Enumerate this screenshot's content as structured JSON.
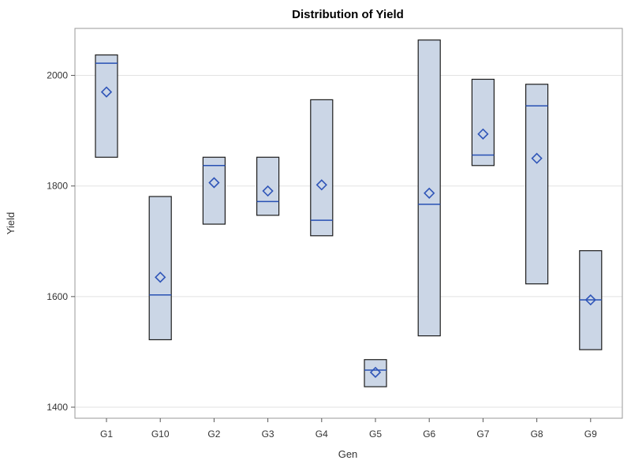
{
  "chart_data": {
    "type": "box",
    "title": "Distribution of Yield",
    "xlabel": "Gen",
    "ylabel": "Yield",
    "ylim": [
      1380,
      2085
    ],
    "yticks": [
      1400,
      1600,
      1800,
      2000
    ],
    "grid": true,
    "categories": [
      "G1",
      "G10",
      "G2",
      "G3",
      "G4",
      "G5",
      "G6",
      "G7",
      "G8",
      "G9"
    ],
    "boxes": [
      {
        "category": "G1",
        "min": 1852,
        "q1": 1852,
        "median": 2022,
        "q3": 2037,
        "max": 2037,
        "mean": 1970
      },
      {
        "category": "G10",
        "min": 1522,
        "q1": 1522,
        "median": 1603,
        "q3": 1781,
        "max": 1781,
        "mean": 1635
      },
      {
        "category": "G2",
        "min": 1731,
        "q1": 1731,
        "median": 1837,
        "q3": 1852,
        "max": 1852,
        "mean": 1806
      },
      {
        "category": "G3",
        "min": 1747,
        "q1": 1747,
        "median": 1772,
        "q3": 1852,
        "max": 1852,
        "mean": 1791
      },
      {
        "category": "G4",
        "min": 1710,
        "q1": 1710,
        "median": 1738,
        "q3": 1956,
        "max": 1956,
        "mean": 1802
      },
      {
        "category": "G5",
        "min": 1437,
        "q1": 1437,
        "median": 1467,
        "q3": 1486,
        "max": 1486,
        "mean": 1463
      },
      {
        "category": "G6",
        "min": 1529,
        "q1": 1529,
        "median": 1767,
        "q3": 2064,
        "max": 2064,
        "mean": 1787
      },
      {
        "category": "G7",
        "min": 1837,
        "q1": 1837,
        "median": 1856,
        "q3": 1993,
        "max": 1993,
        "mean": 1894
      },
      {
        "category": "G8",
        "min": 1623,
        "q1": 1623,
        "median": 1945,
        "q3": 1984,
        "max": 1984,
        "mean": 1850
      },
      {
        "category": "G9",
        "min": 1504,
        "q1": 1504,
        "median": 1594,
        "q3": 1683,
        "max": 1683,
        "mean": 1594
      }
    ]
  }
}
